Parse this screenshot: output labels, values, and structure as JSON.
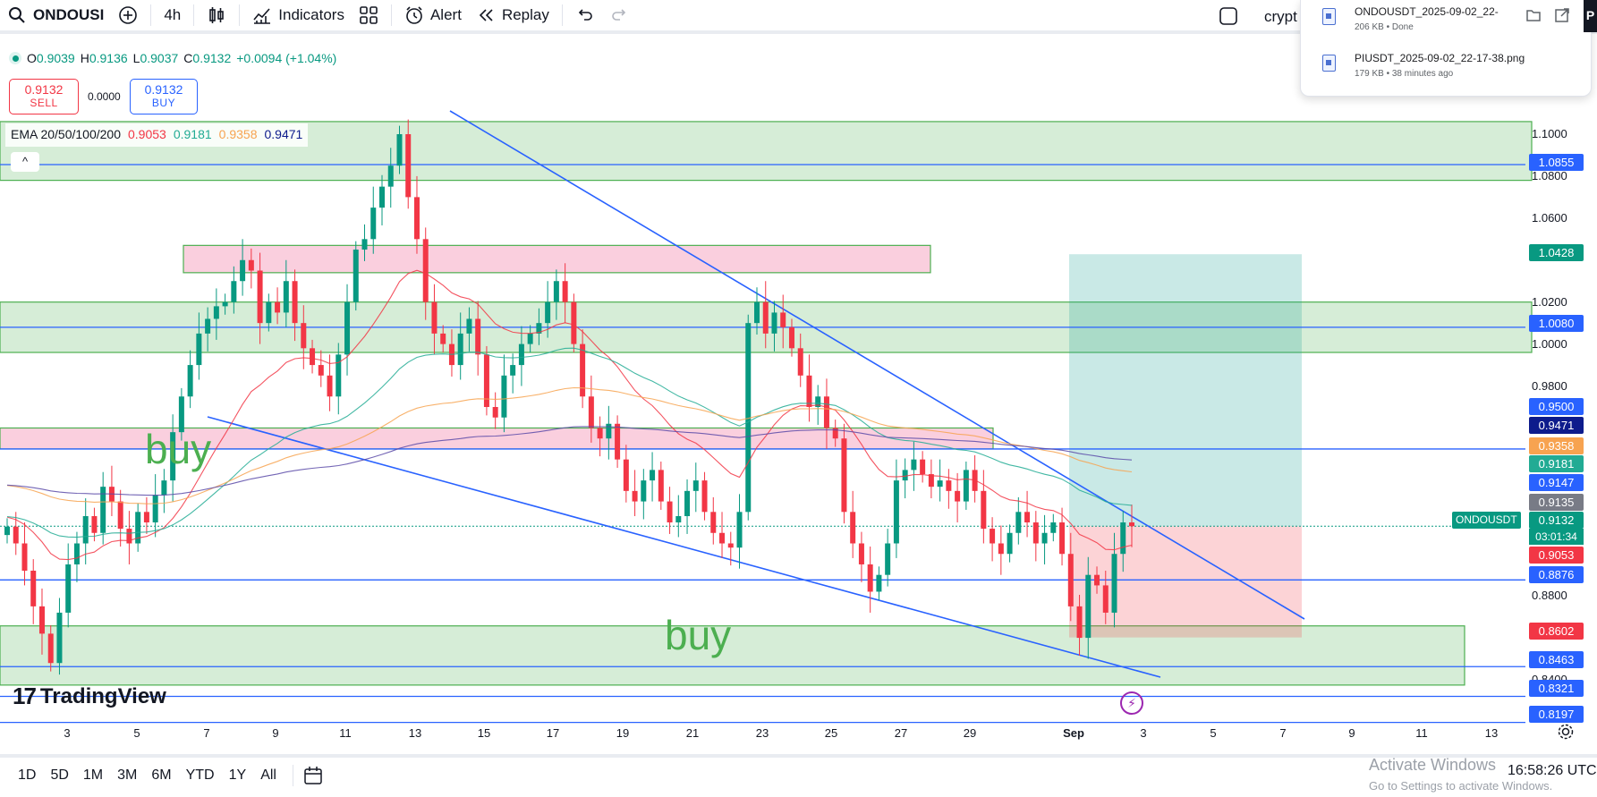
{
  "toolbar": {
    "symbol": "ONDOUSI",
    "interval": "4h",
    "indicators_label": "Indicators",
    "alert_label": "Alert",
    "replay_label": "Replay",
    "right_text": "crypt"
  },
  "downloads": {
    "items": [
      {
        "name": "ONDOUSDT_2025-09-02_22-",
        "meta": "206 KB • Done"
      },
      {
        "name": "PIUSDT_2025-09-02_22-17-38.png",
        "meta": "179 KB • 38 minutes ago"
      }
    ],
    "badge": "P"
  },
  "legend": {
    "open_label": "O",
    "open": "0.9039",
    "high_label": "H",
    "high": "0.9136",
    "low_label": "L",
    "low": "0.9037",
    "close_label": "C",
    "close": "0.9132",
    "change": "+0.0094 (+1.04%)"
  },
  "trade": {
    "sell_price": "0.9132",
    "sell_label": "SELL",
    "spread": "0.0000",
    "buy_price": "0.9132",
    "buy_label": "BUY"
  },
  "ema": {
    "label": "EMA 20/50/100/200",
    "v20": "0.9053",
    "v50": "0.9181",
    "v100": "0.9358",
    "v200": "0.9471",
    "collapse_icon": "^"
  },
  "colors": {
    "up": "#089981",
    "down": "#f23645",
    "hline": "#2962ff",
    "ema20": "#f23645",
    "ema50": "#22ab94",
    "ema100": "#f7a350",
    "ema200": "#5b4aa8",
    "zone_green": "#c8e6c9",
    "zone_red": "#f8bbd0"
  },
  "price_axis": {
    "labels": [
      "1.1000",
      "1.0800",
      "1.0600",
      "1.0200",
      "1.0000",
      "0.9800",
      "0.8800",
      "0.8400"
    ],
    "tags": [
      {
        "value": "1.0855",
        "color": "#2962ff"
      },
      {
        "value": "1.0428",
        "color": "#089981"
      },
      {
        "value": "1.0080",
        "color": "#2962ff"
      },
      {
        "value": "0.9500",
        "color": "#2962ff"
      },
      {
        "value": "0.9471",
        "color": "#0d1b8c"
      },
      {
        "value": "0.9358",
        "color": "#f7a350"
      },
      {
        "value": "0.9181",
        "color": "#22ab94"
      },
      {
        "value": "0.9147",
        "color": "#2962ff"
      },
      {
        "value": "0.9135",
        "color": "#787b86"
      },
      {
        "value": "0.9053",
        "color": "#f23645"
      },
      {
        "value": "0.8876",
        "color": "#2962ff"
      },
      {
        "value": "0.8602",
        "color": "#f23645"
      },
      {
        "value": "0.8463",
        "color": "#2962ff"
      },
      {
        "value": "0.8321",
        "color": "#2962ff"
      },
      {
        "value": "0.8197",
        "color": "#2962ff"
      }
    ],
    "current_symbol": "ONDOUSDT",
    "current_price": "0.9132",
    "countdown": "03:01:34"
  },
  "time_axis": {
    "labels": [
      "3",
      "5",
      "7",
      "9",
      "11",
      "13",
      "15",
      "17",
      "19",
      "21",
      "23",
      "25",
      "27",
      "29",
      "Sep",
      "3",
      "5",
      "7",
      "9",
      "11",
      "13"
    ]
  },
  "annotations": {
    "buy_upper": "buy",
    "buy_lower": "buy"
  },
  "chart_data": {
    "type": "candlestick",
    "symbol": "ONDOUSDT",
    "interval": "4h",
    "last_close": 0.9132,
    "ylim": [
      0.815,
      1.115
    ],
    "horizontal_levels": [
      1.0855,
      1.008,
      0.95,
      0.8876,
      0.8463,
      0.8321,
      0.8197
    ],
    "zones": [
      {
        "kind": "resistance",
        "color": "green",
        "low": 1.078,
        "high": 1.106
      },
      {
        "kind": "supply",
        "color": "red",
        "low": 1.034,
        "high": 1.047
      },
      {
        "kind": "support",
        "color": "green",
        "low": 0.996,
        "high": 1.02
      },
      {
        "kind": "supply",
        "color": "red",
        "low": 0.95,
        "high": 0.96
      },
      {
        "kind": "demand",
        "color": "green",
        "low": 0.8375,
        "high": 0.8657
      }
    ],
    "position": {
      "entry": 0.9132,
      "target": 1.0428,
      "stop": 0.8602
    },
    "ema": {
      "20": 0.9053,
      "50": 0.9181,
      "100": 0.9358,
      "200": 0.9471
    },
    "closes": [
      0.913,
      0.905,
      0.892,
      0.875,
      0.862,
      0.848,
      0.872,
      0.895,
      0.905,
      0.918,
      0.91,
      0.932,
      0.925,
      0.912,
      0.905,
      0.92,
      0.915,
      0.928,
      0.935,
      0.958,
      0.975,
      0.99,
      1.005,
      1.012,
      1.018,
      1.02,
      1.03,
      1.04,
      1.035,
      1.01,
      1.02,
      1.015,
      1.03,
      1.01,
      0.998,
      0.99,
      0.985,
      0.975,
      0.995,
      1.02,
      1.045,
      1.05,
      1.065,
      1.075,
      1.085,
      1.1,
      1.07,
      1.05,
      1.02,
      1.005,
      1.0,
      0.99,
      1.005,
      1.012,
      0.995,
      0.97,
      0.965,
      0.985,
      0.99,
      1.0,
      1.005,
      1.01,
      1.02,
      1.03,
      1.02,
      1.0,
      0.975,
      0.96,
      0.955,
      0.962,
      0.945,
      0.93,
      0.925,
      0.935,
      0.94,
      0.925,
      0.915,
      0.918,
      0.93,
      0.935,
      0.92,
      0.91,
      0.905,
      0.903,
      0.92,
      1.01,
      1.02,
      1.005,
      1.015,
      1.008,
      0.998,
      0.985,
      0.97,
      0.975,
      0.96,
      0.955,
      0.92,
      0.905,
      0.895,
      0.882,
      0.89,
      0.905,
      0.935,
      0.94,
      0.945,
      0.938,
      0.932,
      0.935,
      0.93,
      0.925,
      0.94,
      0.93,
      0.912,
      0.905,
      0.9,
      0.91,
      0.92,
      0.915,
      0.905,
      0.91,
      0.915,
      0.9,
      0.875,
      0.86,
      0.89,
      0.885,
      0.872,
      0.9,
      0.915,
      0.9132
    ]
  }
}
